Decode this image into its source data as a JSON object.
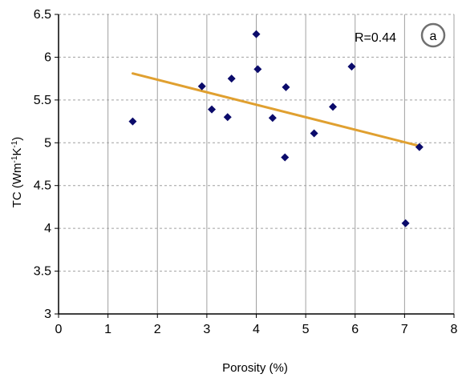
{
  "chart_data": {
    "type": "scatter",
    "xlabel": "Porosity (%)",
    "ylabel": "TC (Wm",
    "ylabel_sup1": "-1",
    "ylabel_mid": "K",
    "ylabel_sup2": "-1",
    "ylabel_end": ")",
    "xlim": [
      0,
      8
    ],
    "ylim": [
      3,
      6.5
    ],
    "x_ticks": [
      0,
      1,
      2,
      3,
      4,
      5,
      6,
      7,
      8
    ],
    "y_ticks": [
      3,
      3.5,
      4,
      4.5,
      5,
      5.5,
      6,
      6.5
    ],
    "x_tick_labels": [
      "0",
      "1",
      "2",
      "3",
      "4",
      "5",
      "6",
      "7",
      "8"
    ],
    "y_tick_labels": [
      "3",
      "3.5",
      "4",
      "4.5",
      "5",
      "5.5",
      "6",
      "6.5"
    ],
    "grid": "vertical solid, horizontal dashed",
    "points": [
      {
        "x": 1.5,
        "y": 5.25
      },
      {
        "x": 2.9,
        "y": 5.66
      },
      {
        "x": 3.1,
        "y": 5.39
      },
      {
        "x": 3.42,
        "y": 5.3
      },
      {
        "x": 3.5,
        "y": 5.75
      },
      {
        "x": 4.0,
        "y": 6.27
      },
      {
        "x": 4.03,
        "y": 5.86
      },
      {
        "x": 4.33,
        "y": 5.29
      },
      {
        "x": 4.58,
        "y": 4.83
      },
      {
        "x": 4.6,
        "y": 5.65
      },
      {
        "x": 5.17,
        "y": 5.11
      },
      {
        "x": 5.55,
        "y": 5.42
      },
      {
        "x": 5.93,
        "y": 5.89
      },
      {
        "x": 7.02,
        "y": 4.06
      },
      {
        "x": 7.3,
        "y": 4.95
      }
    ],
    "trendline": {
      "x": [
        1.5,
        7.25
      ],
      "y": [
        5.81,
        4.97
      ]
    },
    "annotation": "R=0.44",
    "panel_label": "a",
    "colors": {
      "marker": "#0b0b6b",
      "trendline": "#e0a030",
      "grid": "#a0a0a0",
      "circle": "#707070"
    }
  }
}
